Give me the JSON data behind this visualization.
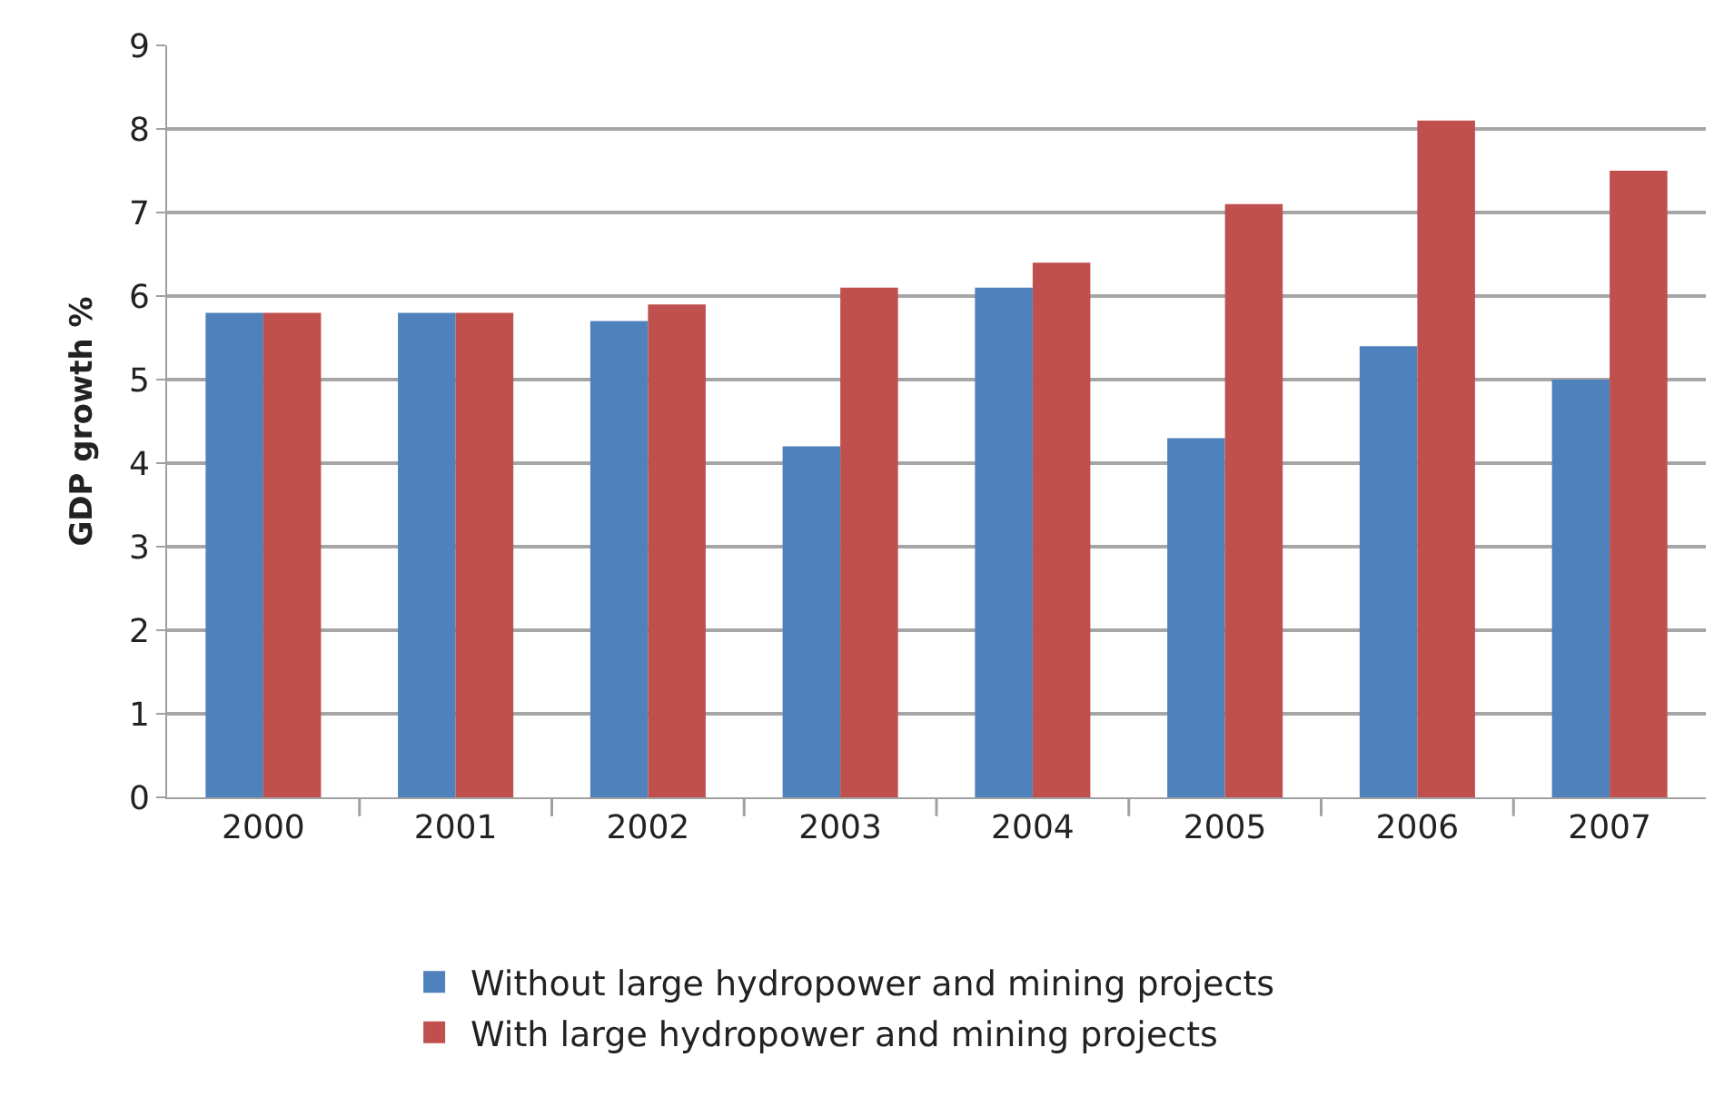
{
  "chart_data": {
    "type": "bar",
    "ylabel": "GDP growth %",
    "categories": [
      "2000",
      "2001",
      "2002",
      "2003",
      "2004",
      "2005",
      "2006",
      "2007"
    ],
    "series": [
      {
        "name": "Without large hydropower and mining projects",
        "color": "#4f81bd",
        "values": [
          5.8,
          5.8,
          5.7,
          4.2,
          6.1,
          4.3,
          5.4,
          5.0
        ]
      },
      {
        "name": "With large hydropower and mining projects",
        "color": "#c0504d",
        "values": [
          5.8,
          5.8,
          5.9,
          6.1,
          6.4,
          7.1,
          8.1,
          7.5
        ]
      }
    ],
    "ylim": [
      0,
      9
    ],
    "yticks": [
      0,
      1,
      2,
      3,
      4,
      5,
      6,
      7,
      8,
      9
    ],
    "grid": "y",
    "legend": "bottom"
  }
}
